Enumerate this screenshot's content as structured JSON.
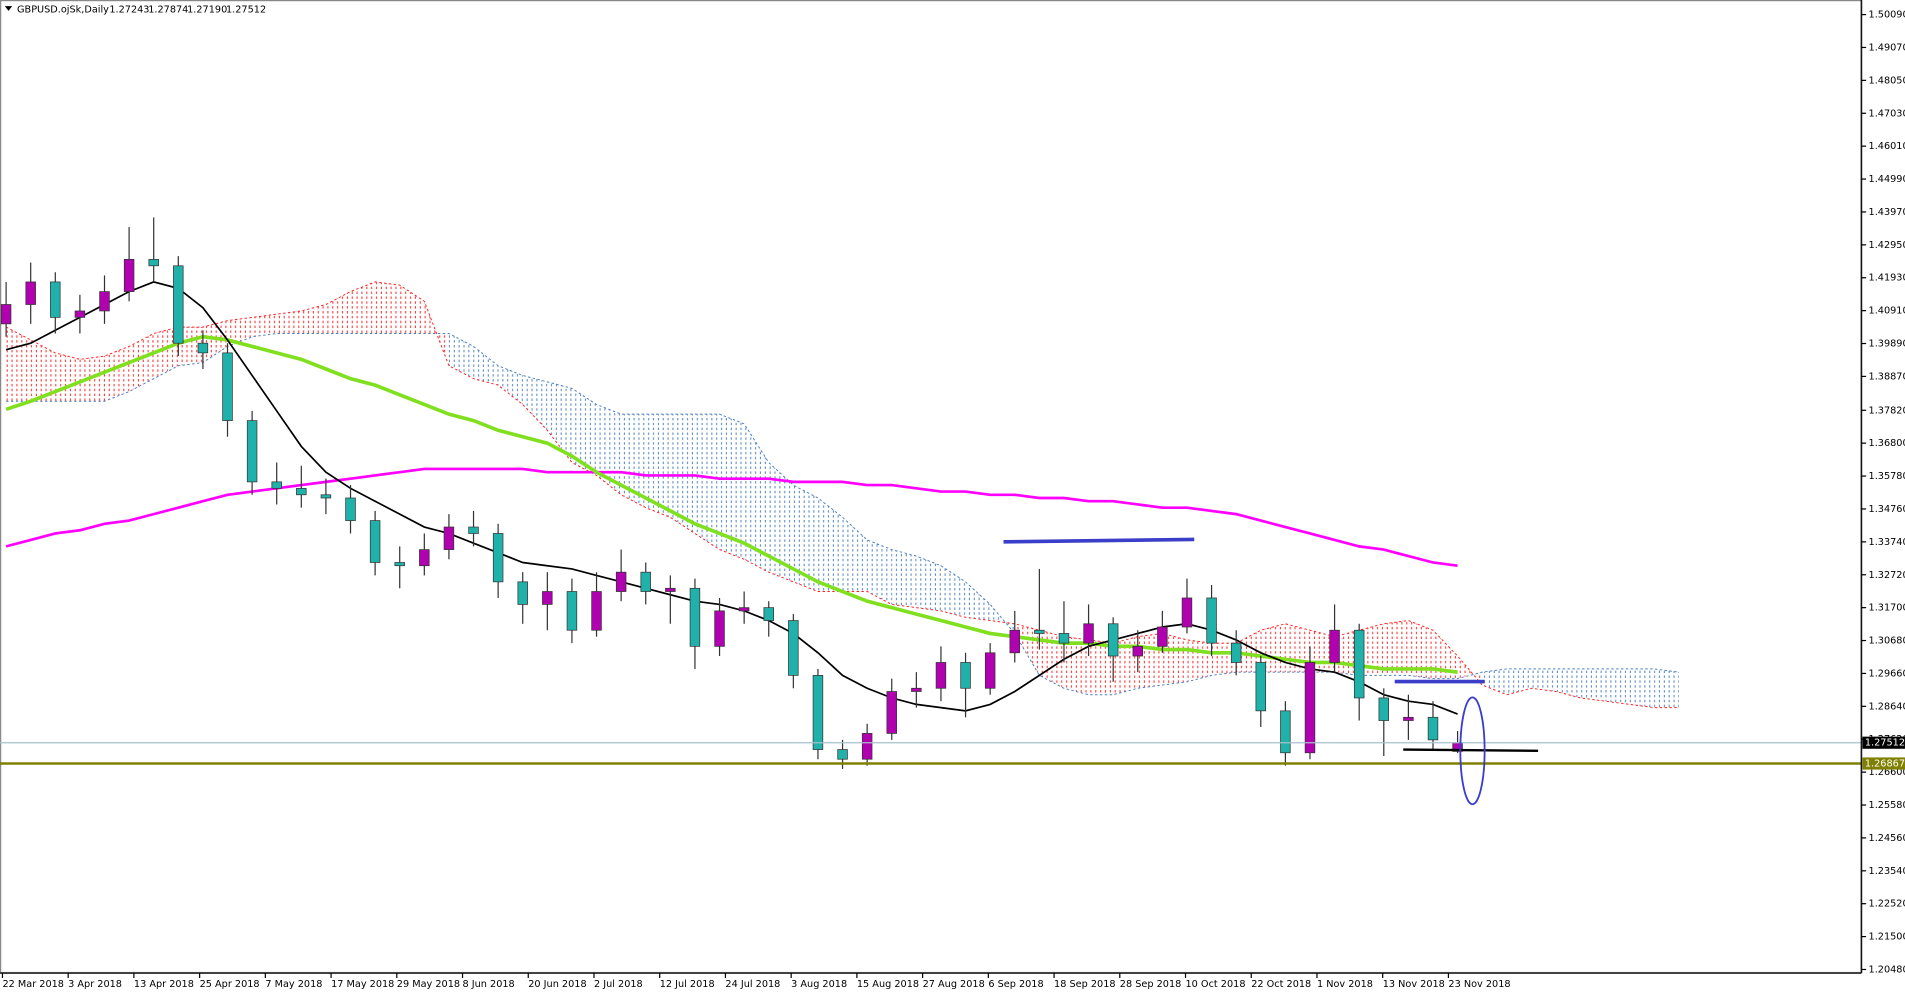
{
  "chart_data": {
    "type": "candlestick",
    "title": "GBPUSD.ojSk,Daily",
    "header_prices": [
      "1.27243",
      "1.27874",
      "1.27190",
      "1.27512"
    ],
    "x_labels": [
      "22 Mar 2018",
      "3 Apr 2018",
      "13 Apr 2018",
      "25 Apr 2018",
      "7 May 2018",
      "17 May 2018",
      "29 May 2018",
      "8 Jun 2018",
      "20 Jun 2018",
      "2 Jul 2018",
      "12 Jul 2018",
      "24 Jul 2018",
      "3 Aug 2018",
      "15 Aug 2018",
      "27 Aug 2018",
      "6 Sep 2018",
      "18 Sep 2018",
      "28 Sep 2018",
      "10 Oct 2018",
      "22 Oct 2018",
      "1 Nov 2018",
      "13 Nov 2018",
      "23 Nov 2018"
    ],
    "ylim": [
      1.2048,
      1.5009
    ],
    "yticks": [
      {
        "value": 1.5009,
        "label": "1.50090"
      },
      {
        "value": 1.4907,
        "label": "1.49070"
      },
      {
        "value": 1.4805,
        "label": "1.48050"
      },
      {
        "value": 1.4703,
        "label": "1.47030"
      },
      {
        "value": 1.4601,
        "label": "1.46010"
      },
      {
        "value": 1.4499,
        "label": "1.44990"
      },
      {
        "value": 1.4397,
        "label": "1.43970"
      },
      {
        "value": 1.4295,
        "label": "1.42950"
      },
      {
        "value": 1.4193,
        "label": "1.41930"
      },
      {
        "value": 1.4091,
        "label": "1.40910"
      },
      {
        "value": 1.3989,
        "label": "1.39890"
      },
      {
        "value": 1.3887,
        "label": "1.38870"
      },
      {
        "value": 1.3782,
        "label": "1.37820"
      },
      {
        "value": 1.368,
        "label": "1.36800"
      },
      {
        "value": 1.3578,
        "label": "1.35780"
      },
      {
        "value": 1.3476,
        "label": "1.34760"
      },
      {
        "value": 1.3374,
        "label": "1.33740"
      },
      {
        "value": 1.3272,
        "label": "1.32720"
      },
      {
        "value": 1.317,
        "label": "1.31700"
      },
      {
        "value": 1.3068,
        "label": "1.30680"
      },
      {
        "value": 1.2966,
        "label": "1.29660"
      },
      {
        "value": 1.2864,
        "label": "1.28640"
      },
      {
        "value": 1.2762,
        "label": "1.27620"
      },
      {
        "value": 1.266,
        "label": "1.26600"
      },
      {
        "value": 1.2558,
        "label": "1.25580"
      },
      {
        "value": 1.2456,
        "label": "1.24560"
      },
      {
        "value": 1.2354,
        "label": "1.23540"
      },
      {
        "value": 1.2252,
        "label": "1.22520"
      },
      {
        "value": 1.215,
        "label": "1.21500"
      },
      {
        "value": 1.2048,
        "label": "1.20480"
      }
    ],
    "up_color": "#b000b0",
    "down_color": "#20b2aa",
    "candles": [
      [
        1.405,
        1.418,
        1.401,
        1.411
      ],
      [
        1.411,
        1.424,
        1.405,
        1.418
      ],
      [
        1.418,
        1.421,
        1.402,
        1.407
      ],
      [
        1.407,
        1.414,
        1.402,
        1.409
      ],
      [
        1.409,
        1.42,
        1.405,
        1.415
      ],
      [
        1.415,
        1.435,
        1.412,
        1.425
      ],
      [
        1.425,
        1.438,
        1.418,
        1.423
      ],
      [
        1.423,
        1.426,
        1.395,
        1.399
      ],
      [
        1.399,
        1.403,
        1.391,
        1.396
      ],
      [
        1.396,
        1.399,
        1.37,
        1.375
      ],
      [
        1.375,
        1.378,
        1.352,
        1.356
      ],
      [
        1.356,
        1.362,
        1.349,
        1.354
      ],
      [
        1.354,
        1.361,
        1.348,
        1.352
      ],
      [
        1.352,
        1.357,
        1.346,
        1.351
      ],
      [
        1.351,
        1.355,
        1.34,
        1.344
      ],
      [
        1.344,
        1.347,
        1.327,
        1.331
      ],
      [
        1.331,
        1.336,
        1.323,
        1.33
      ],
      [
        1.33,
        1.34,
        1.327,
        1.335
      ],
      [
        1.335,
        1.346,
        1.332,
        1.342
      ],
      [
        1.342,
        1.347,
        1.336,
        1.34
      ],
      [
        1.34,
        1.343,
        1.32,
        1.325
      ],
      [
        1.325,
        1.328,
        1.312,
        1.318
      ],
      [
        1.318,
        1.328,
        1.31,
        1.322
      ],
      [
        1.322,
        1.326,
        1.306,
        1.31
      ],
      [
        1.31,
        1.328,
        1.308,
        1.322
      ],
      [
        1.322,
        1.335,
        1.319,
        1.328
      ],
      [
        1.328,
        1.331,
        1.318,
        1.322
      ],
      [
        1.322,
        1.327,
        1.312,
        1.323
      ],
      [
        1.323,
        1.326,
        1.298,
        1.305
      ],
      [
        1.305,
        1.32,
        1.302,
        1.316
      ],
      [
        1.316,
        1.322,
        1.312,
        1.317
      ],
      [
        1.317,
        1.319,
        1.308,
        1.313
      ],
      [
        1.313,
        1.315,
        1.292,
        1.296
      ],
      [
        1.296,
        1.298,
        1.27,
        1.273
      ],
      [
        1.273,
        1.276,
        1.267,
        1.27
      ],
      [
        1.27,
        1.281,
        1.268,
        1.278
      ],
      [
        1.278,
        1.295,
        1.276,
        1.291
      ],
      [
        1.291,
        1.297,
        1.286,
        1.292
      ],
      [
        1.292,
        1.305,
        1.288,
        1.3
      ],
      [
        1.3,
        1.303,
        1.283,
        1.292
      ],
      [
        1.292,
        1.306,
        1.29,
        1.303
      ],
      [
        1.303,
        1.316,
        1.3,
        1.31
      ],
      [
        1.31,
        1.329,
        1.304,
        1.309
      ],
      [
        1.309,
        1.319,
        1.3,
        1.306
      ],
      [
        1.306,
        1.318,
        1.302,
        1.312
      ],
      [
        1.312,
        1.314,
        1.294,
        1.302
      ],
      [
        1.302,
        1.31,
        1.297,
        1.305
      ],
      [
        1.305,
        1.316,
        1.303,
        1.311
      ],
      [
        1.311,
        1.326,
        1.309,
        1.32
      ],
      [
        1.32,
        1.324,
        1.302,
        1.306
      ],
      [
        1.306,
        1.31,
        1.296,
        1.3
      ],
      [
        1.3,
        1.302,
        1.28,
        1.285
      ],
      [
        1.285,
        1.288,
        1.268,
        1.272
      ],
      [
        1.272,
        1.305,
        1.27,
        1.3
      ],
      [
        1.3,
        1.318,
        1.297,
        1.31
      ],
      [
        1.31,
        1.312,
        1.282,
        1.289
      ],
      [
        1.289,
        1.292,
        1.271,
        1.282
      ],
      [
        1.282,
        1.29,
        1.276,
        1.283
      ],
      [
        1.283,
        1.288,
        1.273,
        1.276
      ],
      [
        1.27243,
        1.27874,
        1.2719,
        1.27512
      ]
    ],
    "lines": [
      {
        "color": "#ff00ff",
        "width": 2.2,
        "values": [
          1.336,
          1.338,
          1.34,
          1.341,
          1.343,
          1.344,
          1.346,
          1.348,
          1.35,
          1.352,
          1.353,
          1.354,
          1.355,
          1.356,
          1.357,
          1.358,
          1.359,
          1.36,
          1.36,
          1.36,
          1.36,
          1.36,
          1.359,
          1.359,
          1.359,
          1.359,
          1.358,
          1.358,
          1.358,
          1.357,
          1.357,
          1.357,
          1.356,
          1.356,
          1.356,
          1.355,
          1.355,
          1.354,
          1.353,
          1.353,
          1.352,
          1.352,
          1.351,
          1.351,
          1.35,
          1.35,
          1.349,
          1.348,
          1.348,
          1.347,
          1.346,
          1.344,
          1.342,
          1.34,
          1.338,
          1.336,
          1.335,
          1.333,
          1.331,
          1.33
        ]
      },
      {
        "color": "#80e020",
        "width": 3,
        "values": [
          1.3785,
          1.381,
          1.384,
          1.387,
          1.39,
          1.393,
          1.396,
          1.399,
          1.401,
          1.4,
          1.398,
          1.396,
          1.394,
          1.391,
          1.388,
          1.386,
          1.383,
          1.38,
          1.377,
          1.375,
          1.372,
          1.37,
          1.368,
          1.364,
          1.359,
          1.355,
          1.351,
          1.347,
          1.343,
          1.34,
          1.337,
          1.333,
          1.329,
          1.325,
          1.322,
          1.319,
          1.317,
          1.315,
          1.313,
          1.311,
          1.309,
          1.308,
          1.307,
          1.306,
          1.306,
          1.305,
          1.305,
          1.304,
          1.304,
          1.303,
          1.303,
          1.302,
          1.301,
          1.3,
          1.3,
          1.299,
          1.298,
          1.298,
          1.298,
          1.297
        ]
      },
      {
        "color": "#000000",
        "width": 1.4,
        "values": [
          1.397,
          1.399,
          1.403,
          1.407,
          1.411,
          1.415,
          1.418,
          1.416,
          1.41,
          1.4,
          1.389,
          1.378,
          1.367,
          1.359,
          1.354,
          1.35,
          1.346,
          1.342,
          1.34,
          1.337,
          1.334,
          1.331,
          1.33,
          1.329,
          1.327,
          1.325,
          1.323,
          1.321,
          1.319,
          1.318,
          1.316,
          1.313,
          1.309,
          1.303,
          1.296,
          1.292,
          1.289,
          1.287,
          1.286,
          1.285,
          1.287,
          1.291,
          1.296,
          1.301,
          1.305,
          1.307,
          1.309,
          1.311,
          1.312,
          1.31,
          1.307,
          1.303,
          1.3,
          1.298,
          1.297,
          1.294,
          1.29,
          1.288,
          1.287,
          1.284
        ]
      }
    ],
    "cloud": {
      "bull_color": "#ff2020",
      "bear_color": "#4a7fc0",
      "span_a": [
        1.404,
        1.4,
        1.396,
        1.394,
        1.395,
        1.398,
        1.402,
        1.404,
        1.404,
        1.406,
        1.407,
        1.408,
        1.409,
        1.411,
        1.415,
        1.418,
        1.417,
        1.412,
        1.392,
        1.388,
        1.386,
        1.38,
        1.372,
        1.362,
        1.358,
        1.352,
        1.348,
        1.345,
        1.34,
        1.335,
        1.332,
        1.328,
        1.325,
        1.322,
        1.322,
        1.322,
        1.318,
        1.317,
        1.316,
        1.314,
        1.313,
        1.312,
        1.31,
        1.308,
        1.307,
        1.306,
        1.308,
        1.309,
        1.307,
        1.306,
        1.306,
        1.31,
        1.312,
        1.31,
        1.308,
        1.31,
        1.312,
        1.313,
        1.31,
        1.302,
        1.293,
        1.29,
        1.292,
        1.291,
        1.289,
        1.288,
        1.287,
        1.286,
        1.286
      ],
      "span_b": [
        1.381,
        1.381,
        1.381,
        1.381,
        1.381,
        1.384,
        1.388,
        1.392,
        1.393,
        1.398,
        1.401,
        1.402,
        1.402,
        1.402,
        1.402,
        1.402,
        1.402,
        1.402,
        1.402,
        1.398,
        1.392,
        1.389,
        1.387,
        1.385,
        1.38,
        1.377,
        1.377,
        1.377,
        1.377,
        1.377,
        1.374,
        1.362,
        1.355,
        1.351,
        1.345,
        1.338,
        1.335,
        1.333,
        1.33,
        1.325,
        1.318,
        1.309,
        1.296,
        1.292,
        1.29,
        1.29,
        1.292,
        1.293,
        1.294,
        1.296,
        1.297,
        1.297,
        1.297,
        1.297,
        1.297,
        1.296,
        1.296,
        1.296,
        1.295,
        1.295,
        1.297,
        1.298,
        1.298,
        1.298,
        1.298,
        1.298,
        1.298,
        1.298,
        1.297
      ]
    },
    "price_lines": [
      {
        "value": 1.27512,
        "label": "1.27512",
        "color": "#a8c0cc",
        "box": "#000000",
        "text": "#ffffff"
      },
      {
        "value": 1.26867,
        "label": "1.26867",
        "color": "#808000",
        "box": "#808000",
        "text": "#ffffff"
      }
    ]
  }
}
